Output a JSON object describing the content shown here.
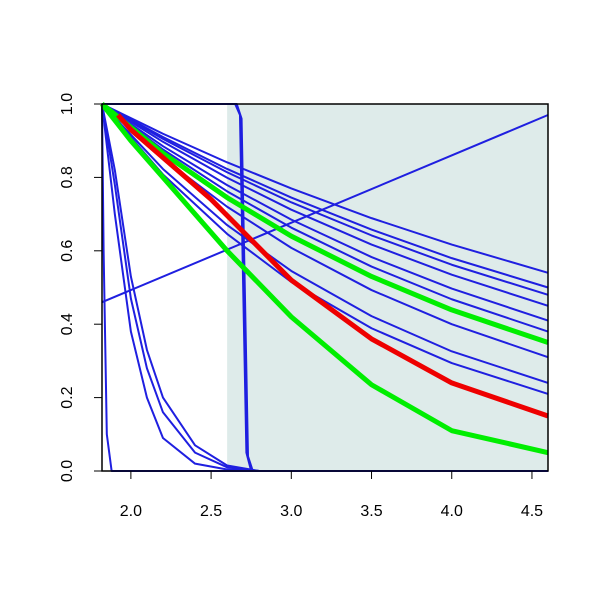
{
  "chart_data": {
    "type": "line",
    "xlim": [
      1.82,
      4.6
    ],
    "ylim": [
      0,
      1
    ],
    "xticks": [
      {
        "value": 2,
        "label": "2.0"
      },
      {
        "value": 2.5,
        "label": "2.5"
      },
      {
        "value": 3,
        "label": "3.0"
      },
      {
        "value": 3.5,
        "label": "3.5"
      },
      {
        "value": 4,
        "label": "4.0"
      },
      {
        "value": 4.5,
        "label": "4.5"
      }
    ],
    "yticks": [
      {
        "value": 0,
        "label": "0.0"
      },
      {
        "value": 0.2,
        "label": "0.2"
      },
      {
        "value": 0.4,
        "label": "0.4"
      },
      {
        "value": 0.6,
        "label": "0.6"
      },
      {
        "value": 0.8,
        "label": "0.8"
      },
      {
        "value": 1,
        "label": "1.0"
      }
    ],
    "shaded_region": {
      "x": [
        2.6,
        4.6
      ],
      "color": "#deebea"
    },
    "series": [
      {
        "color": "#1f1fe0",
        "width": 2,
        "x": [
          1.82,
          2.2,
          2.6,
          3.0,
          3.5,
          4.0,
          4.6
        ],
        "values": [
          1,
          0.919,
          0.841,
          0.77,
          0.689,
          0.617,
          0.54
        ]
      },
      {
        "color": "#1f1fe0",
        "width": 2,
        "x": [
          1.82,
          2.2,
          2.6,
          3.0,
          3.5,
          4.0,
          4.6
        ],
        "values": [
          1,
          0.91,
          0.823,
          0.745,
          0.658,
          0.58,
          0.5
        ]
      },
      {
        "color": "#1f1fe0",
        "width": 2,
        "x": [
          1.82,
          2.2,
          2.6,
          3.0,
          3.5,
          4.0,
          4.6
        ],
        "values": [
          1,
          0.905,
          0.814,
          0.732,
          0.642,
          0.562,
          0.48
        ]
      },
      {
        "color": "#1f1fe0",
        "width": 2,
        "x": [
          1.82,
          2.2,
          2.6,
          3.0,
          3.5,
          4.0,
          4.6
        ],
        "values": [
          1,
          0.897,
          0.799,
          0.712,
          0.617,
          0.535,
          0.45
        ]
      },
      {
        "color": "#1f1fe0",
        "width": 2,
        "x": [
          1.82,
          2.2,
          2.6,
          3.0,
          3.5,
          4.0,
          4.6
        ],
        "values": [
          1,
          0.885,
          0.779,
          0.685,
          0.583,
          0.497,
          0.41
        ]
      },
      {
        "color": "#1f1fe0",
        "width": 2,
        "x": [
          1.82,
          2.2,
          2.6,
          3.0,
          3.5,
          4.0,
          4.6
        ],
        "values": [
          1,
          0.876,
          0.762,
          0.663,
          0.557,
          0.468,
          0.38
        ]
      },
      {
        "color": "#1f1fe0",
        "width": 2,
        "x": [
          1.82,
          2.2,
          2.6,
          3.0,
          3.5,
          4.0,
          4.6
        ],
        "values": [
          1,
          0.852,
          0.72,
          0.608,
          0.493,
          0.4,
          0.31
        ]
      },
      {
        "color": "#1f1fe0",
        "width": 2,
        "x": [
          1.82,
          2.2,
          2.6,
          3.0,
          3.5,
          4.0,
          4.6
        ],
        "values": [
          1,
          0.823,
          0.67,
          0.545,
          0.422,
          0.326,
          0.24
        ]
      },
      {
        "color": "#1f1fe0",
        "width": 2,
        "x": [
          1.82,
          2.2,
          2.6,
          3.0,
          3.5,
          4.0,
          4.6
        ],
        "values": [
          1,
          0.808,
          0.646,
          0.515,
          0.389,
          0.294,
          0.21
        ]
      },
      {
        "color": "#1f1fe0",
        "width": 2,
        "x": [
          1.82,
          4.6
        ],
        "values": [
          0.46,
          0.97
        ]
      },
      {
        "color": "#1f1fe0",
        "width": 2,
        "x": [
          1.82,
          2.65,
          2.68,
          2.7,
          2.72,
          2.75,
          4.6
        ],
        "values": [
          1,
          1,
          0.97,
          0.5,
          0.05,
          0,
          0
        ]
      },
      {
        "color": "#1f1fe0",
        "width": 2,
        "x": [
          1.82,
          2.66,
          2.69,
          2.71,
          2.73,
          2.76,
          4.6
        ],
        "values": [
          1,
          1,
          0.96,
          0.5,
          0.04,
          0,
          0
        ]
      },
      {
        "color": "#1f1fe0",
        "width": 2,
        "x": [
          1.82,
          1.83,
          1.85,
          1.88,
          4.6
        ],
        "values": [
          1,
          0.6,
          0.1,
          0,
          0
        ]
      },
      {
        "color": "#1f1fe0",
        "width": 2,
        "x": [
          1.82,
          1.9,
          2.0,
          2.1,
          2.2,
          2.4,
          2.6,
          2.8
        ],
        "values": [
          1,
          0.7,
          0.38,
          0.2,
          0.09,
          0.02,
          0.004,
          0
        ]
      },
      {
        "color": "#1f1fe0",
        "width": 2,
        "x": [
          1.82,
          1.9,
          2.0,
          2.1,
          2.2,
          2.4,
          2.6,
          2.8
        ],
        "values": [
          1,
          0.78,
          0.47,
          0.28,
          0.16,
          0.05,
          0.01,
          0
        ]
      },
      {
        "color": "#1f1fe0",
        "width": 2,
        "x": [
          1.82,
          1.9,
          2.0,
          2.1,
          2.2,
          2.4,
          2.6,
          2.8
        ],
        "values": [
          1,
          0.82,
          0.53,
          0.33,
          0.2,
          0.07,
          0.015,
          0
        ]
      },
      {
        "color": "#00ee00",
        "width": 5,
        "x": [
          1.82,
          2.2,
          2.6,
          3.0,
          3.5,
          4.0,
          4.6
        ],
        "values": [
          1,
          0.866,
          0.745,
          0.64,
          0.53,
          0.439,
          0.35
        ]
      },
      {
        "color": "#00ee00",
        "width": 5,
        "x": [
          1.82,
          2.0,
          2.3,
          2.6,
          3.0,
          3.5,
          4.0,
          4.6
        ],
        "values": [
          1,
          0.9,
          0.75,
          0.6,
          0.42,
          0.235,
          0.11,
          0.05
        ]
      },
      {
        "color": "#ee0000",
        "width": 5,
        "x": [
          1.92,
          2.0,
          2.5,
          3.0,
          3.5,
          4.0,
          4.6
        ],
        "values": [
          0.97,
          0.93,
          0.74,
          0.52,
          0.36,
          0.24,
          0.15
        ]
      }
    ]
  }
}
